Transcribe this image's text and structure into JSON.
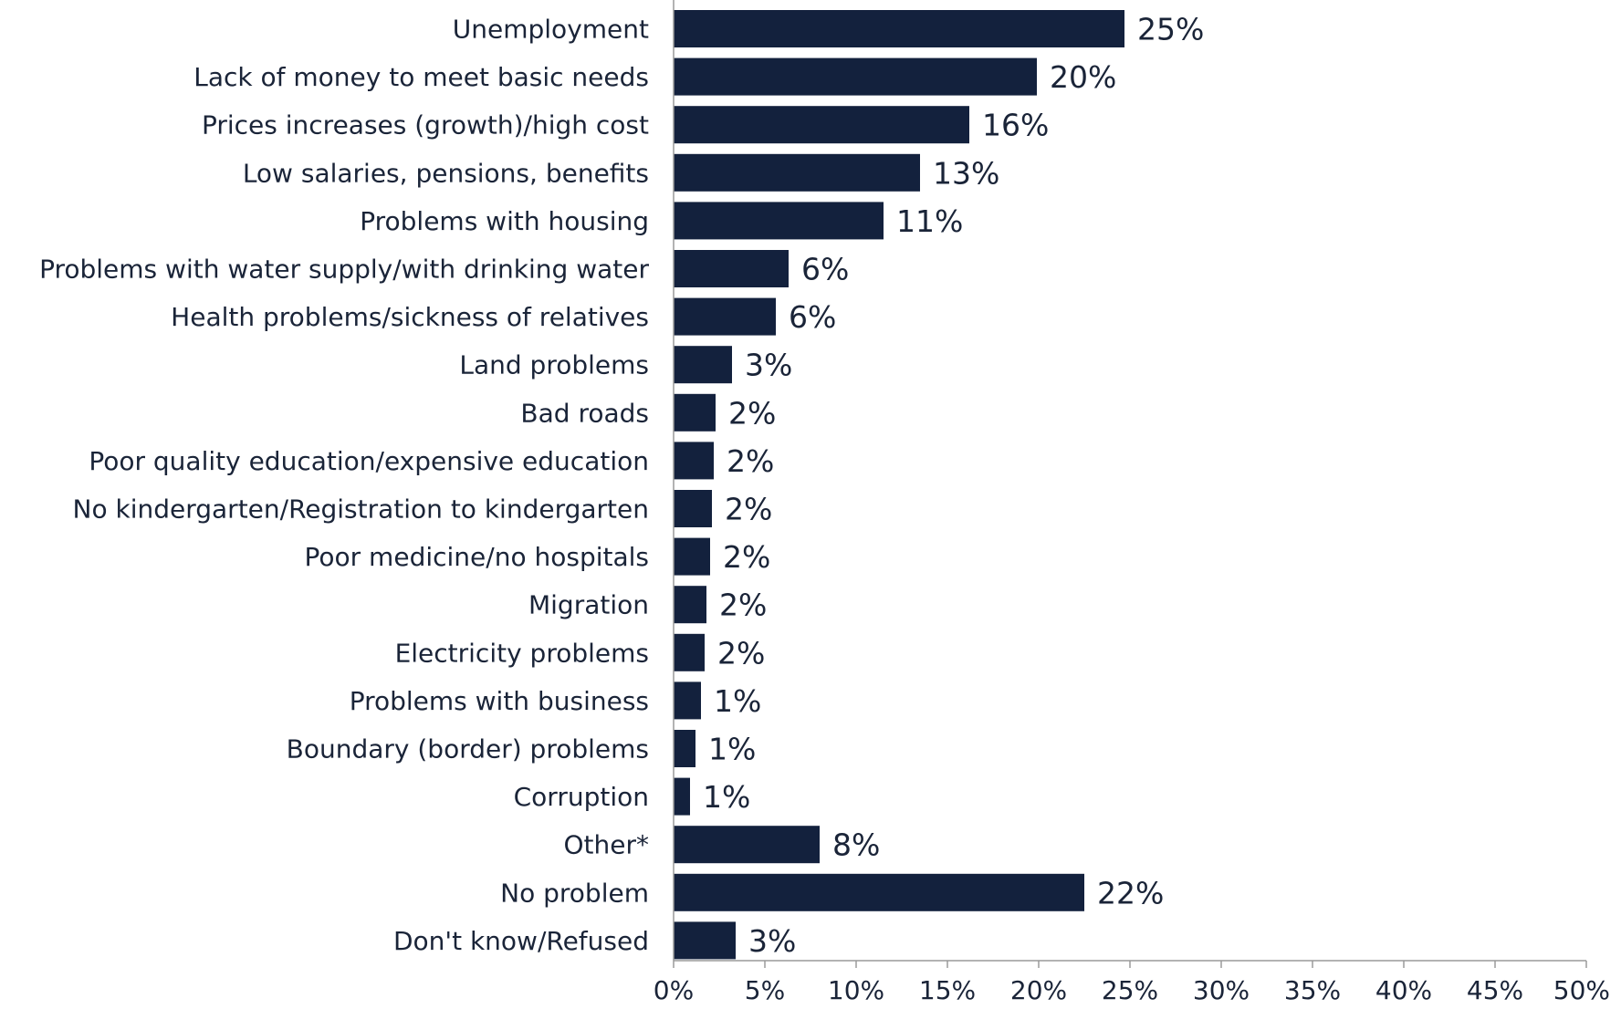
{
  "chart_data": {
    "type": "bar",
    "orientation": "horizontal",
    "categories": [
      "Unemployment",
      "Lack of money to meet basic needs",
      "Prices increases (growth)/high cost",
      "Low salaries, pensions, benefits",
      "Problems with housing",
      "Problems with water supply/with drinking water",
      "Health problems/sickness of relatives",
      "Land problems",
      "Bad roads",
      "Poor quality education/expensive education",
      "No kindergarten/Registration to kindergarten",
      "Poor medicine/no hospitals",
      "Migration",
      "Electricity problems",
      "Problems with business",
      "Boundary (border) problems",
      "Corruption",
      "Other*",
      "No problem",
      "Don't know/Refused"
    ],
    "values": [
      24.7,
      19.9,
      16.2,
      13.5,
      11.5,
      6.3,
      5.6,
      3.2,
      2.3,
      2.2,
      2.1,
      2.0,
      1.8,
      1.7,
      1.5,
      1.2,
      0.9,
      8.0,
      22.5,
      3.4
    ],
    "value_labels": [
      "25%",
      "20%",
      "16%",
      "13%",
      "11%",
      "6%",
      "6%",
      "3%",
      "2%",
      "2%",
      "2%",
      "2%",
      "2%",
      "2%",
      "1%",
      "1%",
      "1%",
      "8%",
      "22%",
      "3%"
    ],
    "xlim": [
      0,
      50
    ],
    "ticks": [
      0,
      5,
      10,
      15,
      20,
      25,
      30,
      35,
      40,
      45,
      50
    ],
    "tick_labels": [
      "0%",
      "5%",
      "10%",
      "15%",
      "20%",
      "25%",
      "30%",
      "35%",
      "40%",
      "45%",
      "50%"
    ],
    "title": "",
    "xlabel": "",
    "ylabel": "",
    "grid": false,
    "legend": "none",
    "bar_color": "#13213d"
  }
}
